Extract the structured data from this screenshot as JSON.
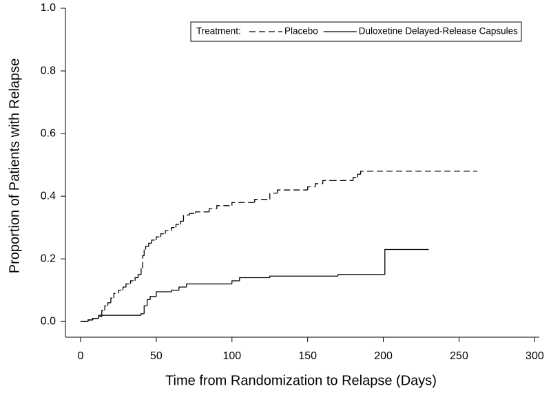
{
  "chart_data": {
    "type": "step",
    "x_label": "Time from Randomization to Relapse (Days)",
    "y_label": "Proportion of Patients with Relapse",
    "legend_title": "Treatment:",
    "legend_position": "upper right",
    "xlim": [
      -10,
      303
    ],
    "ylim": [
      -0.05,
      1.0
    ],
    "xticks": [
      0,
      50,
      100,
      150,
      200,
      250,
      300
    ],
    "yticks": [
      {
        "value": 0,
        "label": "0.0"
      },
      {
        "value": 0.2,
        "label": "0.2"
      },
      {
        "value": 0.4,
        "label": "0.4"
      },
      {
        "value": 0.6,
        "label": "0.6"
      },
      {
        "value": 0.8,
        "label": "0.8"
      },
      {
        "value": 1,
        "label": "1.0"
      }
    ],
    "grid": false,
    "series": [
      {
        "name": "Placebo",
        "color": "#000000",
        "dash": "dashed",
        "x": [
          0,
          5,
          8,
          12,
          14,
          16,
          18,
          20,
          22,
          25,
          28,
          30,
          33,
          36,
          38,
          40,
          41,
          42,
          43,
          45,
          47,
          50,
          53,
          56,
          60,
          63,
          66,
          68,
          72,
          76,
          85,
          90,
          100,
          115,
          125,
          130,
          150,
          155,
          160,
          165,
          180,
          183,
          185,
          262
        ],
        "values": [
          0,
          0.005,
          0.01,
          0.02,
          0.035,
          0.05,
          0.06,
          0.075,
          0.09,
          0.1,
          0.11,
          0.12,
          0.13,
          0.14,
          0.15,
          0.17,
          0.21,
          0.23,
          0.24,
          0.25,
          0.26,
          0.27,
          0.28,
          0.29,
          0.3,
          0.31,
          0.32,
          0.34,
          0.345,
          0.35,
          0.36,
          0.37,
          0.38,
          0.39,
          0.41,
          0.42,
          0.43,
          0.44,
          0.45,
          0.45,
          0.46,
          0.47,
          0.48,
          0.48
        ]
      },
      {
        "name": "Duloxetine Delayed-Release Capsules",
        "color": "#000000",
        "dash": "solid",
        "x": [
          0,
          5,
          8,
          12,
          14,
          40,
          42,
          44,
          46,
          50,
          60,
          65,
          70,
          100,
          105,
          125,
          170,
          200,
          201,
          230
        ],
        "values": [
          0,
          0.005,
          0.01,
          0.015,
          0.02,
          0.025,
          0.05,
          0.07,
          0.08,
          0.095,
          0.1,
          0.11,
          0.12,
          0.13,
          0.14,
          0.145,
          0.15,
          0.15,
          0.23,
          0.23
        ]
      }
    ]
  }
}
